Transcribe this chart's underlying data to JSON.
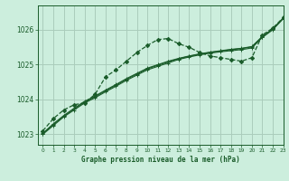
{
  "title": "Graphe pression niveau de la mer (hPa)",
  "bg_color": "#cceedd",
  "grid_color": "#aaccbb",
  "line_color": "#1a5c2a",
  "xlim": [
    -0.5,
    23
  ],
  "ylim": [
    1022.7,
    1026.7
  ],
  "yticks": [
    1023,
    1024,
    1025,
    1026
  ],
  "xticks": [
    0,
    1,
    2,
    3,
    4,
    5,
    6,
    7,
    8,
    9,
    10,
    11,
    12,
    13,
    14,
    15,
    16,
    17,
    18,
    19,
    20,
    21,
    22,
    23
  ],
  "series_wavy": [
    1023.1,
    1023.45,
    1023.7,
    1023.85,
    1023.9,
    1024.15,
    1024.65,
    1024.85,
    1025.1,
    1025.35,
    1025.55,
    1025.72,
    1025.75,
    1025.6,
    1025.5,
    1025.35,
    1025.25,
    1025.2,
    1025.15,
    1025.1,
    1025.2,
    1025.85,
    1026.05,
    1026.35
  ],
  "series_straight1": [
    1023.0,
    1023.25,
    1023.5,
    1023.7,
    1023.9,
    1024.05,
    1024.22,
    1024.38,
    1024.55,
    1024.7,
    1024.85,
    1024.95,
    1025.05,
    1025.15,
    1025.22,
    1025.28,
    1025.33,
    1025.37,
    1025.4,
    1025.43,
    1025.48,
    1025.78,
    1026.0,
    1026.32
  ],
  "series_straight2": [
    1023.02,
    1023.28,
    1023.52,
    1023.73,
    1023.92,
    1024.08,
    1024.25,
    1024.41,
    1024.58,
    1024.73,
    1024.88,
    1024.98,
    1025.08,
    1025.17,
    1025.24,
    1025.3,
    1025.35,
    1025.39,
    1025.43,
    1025.46,
    1025.51,
    1025.8,
    1026.02,
    1026.33
  ],
  "series_straight3": [
    1023.03,
    1023.3,
    1023.54,
    1023.75,
    1023.95,
    1024.1,
    1024.27,
    1024.43,
    1024.6,
    1024.75,
    1024.9,
    1025.0,
    1025.1,
    1025.18,
    1025.25,
    1025.31,
    1025.36,
    1025.4,
    1025.44,
    1025.47,
    1025.52,
    1025.81,
    1026.03,
    1026.34
  ]
}
